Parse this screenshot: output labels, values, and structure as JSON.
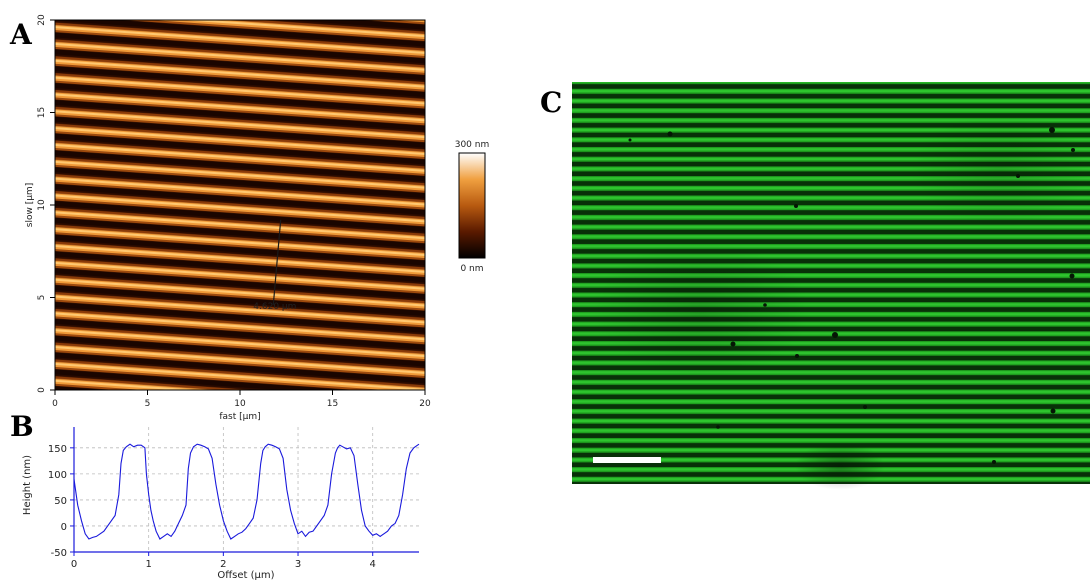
{
  "panels": {
    "a": {
      "letter": "A"
    },
    "b": {
      "letter": "B"
    },
    "c": {
      "letter": "C"
    }
  },
  "chart_data": [
    {
      "panel": "A",
      "type": "heatmap",
      "xlabel": "fast [µm]",
      "ylabel": "slow [µm]",
      "xlim": [
        0,
        20
      ],
      "ylim": [
        0,
        20
      ],
      "xticks": [
        0,
        5,
        10,
        15,
        20
      ],
      "yticks": [
        0,
        5,
        10,
        15,
        20
      ],
      "colorbar": {
        "max_label": "300 nm",
        "min_label": "0 nm",
        "min": 0,
        "max": 300,
        "colors": [
          "#000000",
          "#5a1a00",
          "#b85a10",
          "#f0a040",
          "#ffffff"
        ]
      },
      "stripes": {
        "period_um": 0.9,
        "count": 22,
        "tilt_deg": -3
      },
      "annotation": {
        "text": "4.620 µm",
        "line_start": [
          11.8,
          4.6
        ],
        "line_end": [
          12.2,
          9.2
        ]
      }
    },
    {
      "panel": "B",
      "type": "line",
      "xlabel": "Offset (µm)",
      "ylabel": "Height (nm)",
      "xlim": [
        0,
        4.62
      ],
      "ylim": [
        -50,
        190
      ],
      "xticks": [
        0,
        1,
        2,
        3,
        4
      ],
      "yticks": [
        -50,
        0,
        50,
        100,
        150
      ],
      "grid": true,
      "color": "#1a1adc",
      "series": [
        {
          "x": [
            0,
            0.05,
            0.1,
            0.15,
            0.2,
            0.25,
            0.3,
            0.4,
            0.5,
            0.55,
            0.6,
            0.63,
            0.66,
            0.7,
            0.75,
            0.8,
            0.85,
            0.9,
            0.95,
            0.97,
            1.0,
            1.03,
            1.06,
            1.1,
            1.15,
            1.2,
            1.25,
            1.3,
            1.35,
            1.4,
            1.45,
            1.5,
            1.53,
            1.56,
            1.6,
            1.65,
            1.7,
            1.75,
            1.8,
            1.85,
            1.9,
            1.95,
            2.0,
            2.05,
            2.1,
            2.15,
            2.2,
            2.25,
            2.3,
            2.35,
            2.4,
            2.45,
            2.5,
            2.53,
            2.56,
            2.6,
            2.65,
            2.7,
            2.75,
            2.8,
            2.85,
            2.9,
            2.95,
            3.0,
            3.05,
            3.1,
            3.15,
            3.2,
            3.25,
            3.3,
            3.35,
            3.4,
            3.45,
            3.5,
            3.53,
            3.56,
            3.6,
            3.65,
            3.7,
            3.75,
            3.8,
            3.85,
            3.9,
            3.95,
            4.0,
            4.05,
            4.1,
            4.15,
            4.2,
            4.25,
            4.3,
            4.35,
            4.4,
            4.45,
            4.5,
            4.55,
            4.6,
            4.62
          ],
          "y": [
            90,
            40,
            10,
            -15,
            -25,
            -22,
            -20,
            -10,
            10,
            20,
            60,
            120,
            145,
            152,
            157,
            152,
            155,
            155,
            150,
            100,
            60,
            30,
            10,
            -10,
            -25,
            -20,
            -15,
            -20,
            -10,
            5,
            20,
            40,
            110,
            140,
            152,
            157,
            155,
            152,
            148,
            130,
            80,
            40,
            10,
            -10,
            -25,
            -20,
            -15,
            -12,
            -5,
            5,
            15,
            50,
            120,
            145,
            152,
            157,
            155,
            152,
            148,
            130,
            70,
            30,
            5,
            -15,
            -10,
            -20,
            -12,
            -10,
            0,
            10,
            20,
            40,
            100,
            140,
            150,
            155,
            152,
            148,
            150,
            135,
            80,
            30,
            0,
            -10,
            -18,
            -15,
            -20,
            -15,
            -10,
            0,
            5,
            20,
            60,
            110,
            140,
            150,
            155,
            157
          ]
        }
      ]
    }
  ]
}
